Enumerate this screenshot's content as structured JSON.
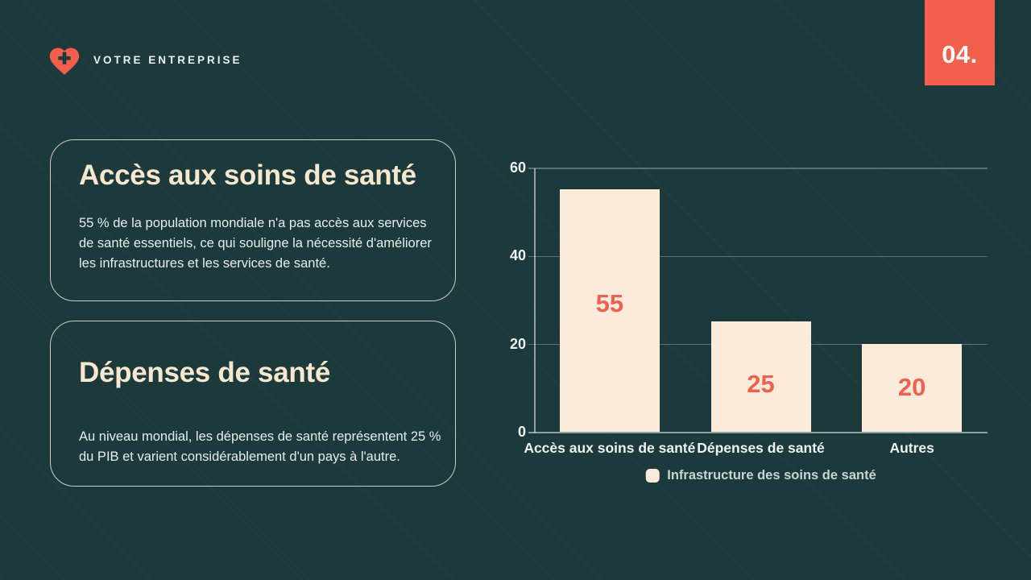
{
  "slide": {
    "page_number": "04.",
    "colors": {
      "background": "#1C393B",
      "accent": "#F2604D",
      "bar_cream": "#FCEBDB",
      "title_cream": "#F6E7CF"
    }
  },
  "header": {
    "brand": "VOTRE ENTREPRISE",
    "logo_icon": "heart-with-cross-icon"
  },
  "cards": [
    {
      "title": "Accès aux soins de santé",
      "body": "55 % de la population mondiale n'a pas accès aux services de santé essentiels, ce qui souligne la nécessité d'améliorer les infrastructures et les services de santé."
    },
    {
      "title": "Dépenses de santé",
      "body": "Au niveau mondial, les dépenses de santé représentent 25 % du PIB et varient considérablement d'un pays à l'autre."
    }
  ],
  "chart_data": {
    "type": "bar",
    "categories": [
      "Accès aux soins de santé",
      "Dépenses de santé",
      "Autres"
    ],
    "series": [
      {
        "name": "Infrastructure des soins de santé",
        "values": [
          55,
          25,
          20
        ]
      }
    ],
    "values": [
      55,
      25,
      20
    ],
    "title": "",
    "xlabel": "",
    "ylabel": "",
    "ylim": [
      0,
      60
    ],
    "yticks": [
      0,
      20,
      40,
      60
    ],
    "grid": true,
    "legend": {
      "label": "Infrastructure des soins de santé",
      "position": "bottom"
    },
    "bar_color": "#FCEBDB",
    "value_label_color": "#EE6150"
  }
}
